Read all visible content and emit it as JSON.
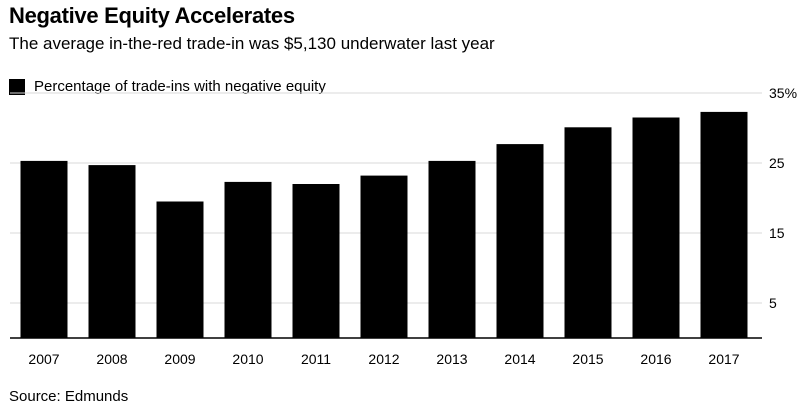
{
  "header": {
    "title": "Negative Equity Accelerates",
    "subtitle": "The average in-the-red trade-in was $5,130 underwater last year"
  },
  "legend": {
    "label": "Percentage of trade-ins with negative equity"
  },
  "footer": {
    "source": "Source: Edmunds"
  },
  "colors": {
    "bar": "#000000",
    "grid": "#d9d9d9",
    "axis": "#000000"
  },
  "chart_data": {
    "type": "bar",
    "title": "Negative Equity Accelerates",
    "subtitle": "The average in-the-red trade-in was $5,130 underwater last year",
    "categories": [
      "2007",
      "2008",
      "2009",
      "2010",
      "2011",
      "2012",
      "2013",
      "2014",
      "2015",
      "2016",
      "2017"
    ],
    "series": [
      {
        "name": "Percentage of trade-ins with negative equity",
        "values": [
          25.3,
          24.7,
          19.5,
          22.3,
          22.0,
          23.2,
          25.3,
          27.7,
          30.1,
          31.5,
          32.3
        ]
      }
    ],
    "xlabel": "",
    "ylabel": "",
    "ylim": [
      0,
      35
    ],
    "yticks": [
      5,
      15,
      25,
      35
    ],
    "ytick_labels": [
      "5",
      "15",
      "25",
      "35%"
    ],
    "grid": true,
    "y_axis_side": "right",
    "legend_position": "top-left"
  }
}
